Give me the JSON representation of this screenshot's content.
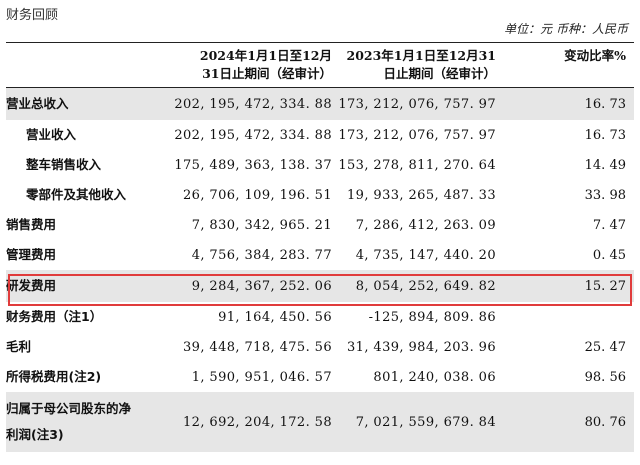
{
  "section_title": "财务回顾",
  "unit_note": "单位：元  币种：人民币",
  "header": {
    "col_2024": "2024年1月1日至12月\n31日止期间（经审计）",
    "col_2023": "2023年1月1日至12月31\n日止期间（经审计）",
    "col_change": "变动比率%"
  },
  "rows": [
    {
      "label": "营业总收入",
      "v2024": "202, 195, 472, 334. 88",
      "v2023": "173, 212, 076, 757. 97",
      "change": "16. 73"
    },
    {
      "label": "营业收入",
      "v2024": "202, 195, 472, 334. 88",
      "v2023": "173, 212, 076, 757. 97",
      "change": "16. 73"
    },
    {
      "label": "整车销售收入",
      "v2024": "175, 489, 363, 138. 37",
      "v2023": "153, 278, 811, 270. 64",
      "change": "14. 49"
    },
    {
      "label": "零部件及其他收入",
      "v2024": "26, 706, 109, 196. 51",
      "v2023": "19, 933, 265, 487. 33",
      "change": "33. 98"
    },
    {
      "label": "销售费用",
      "v2024": "7, 830, 342, 965. 21",
      "v2023": "7, 286, 412, 263. 09",
      "change": "7. 47"
    },
    {
      "label": "管理费用",
      "v2024": "4, 756, 384, 283. 77",
      "v2023": "4, 735, 147, 440. 20",
      "change": "0. 45"
    },
    {
      "label": "研发费用",
      "v2024": "9, 284, 367, 252. 06",
      "v2023": "8, 054, 252, 649. 82",
      "change": "15. 27"
    },
    {
      "label": "财务费用（注1）",
      "v2024": "91, 164, 450. 56",
      "v2023": "-125, 894, 809. 86",
      "change": ""
    },
    {
      "label": "毛利",
      "v2024": "39, 448, 718, 475. 56",
      "v2023": "31, 439, 984, 203. 96",
      "change": "25. 47"
    },
    {
      "label": "所得税费用(注2)",
      "v2024": "1, 590, 951, 046. 57",
      "v2023": "801, 240, 038. 06",
      "change": "98. 56"
    },
    {
      "label": "归属于母公司股东的净\n利润(注3)",
      "v2024": "12, 692, 204, 172. 58",
      "v2023": "7, 021, 559, 679. 84",
      "change": "80. 76"
    }
  ]
}
